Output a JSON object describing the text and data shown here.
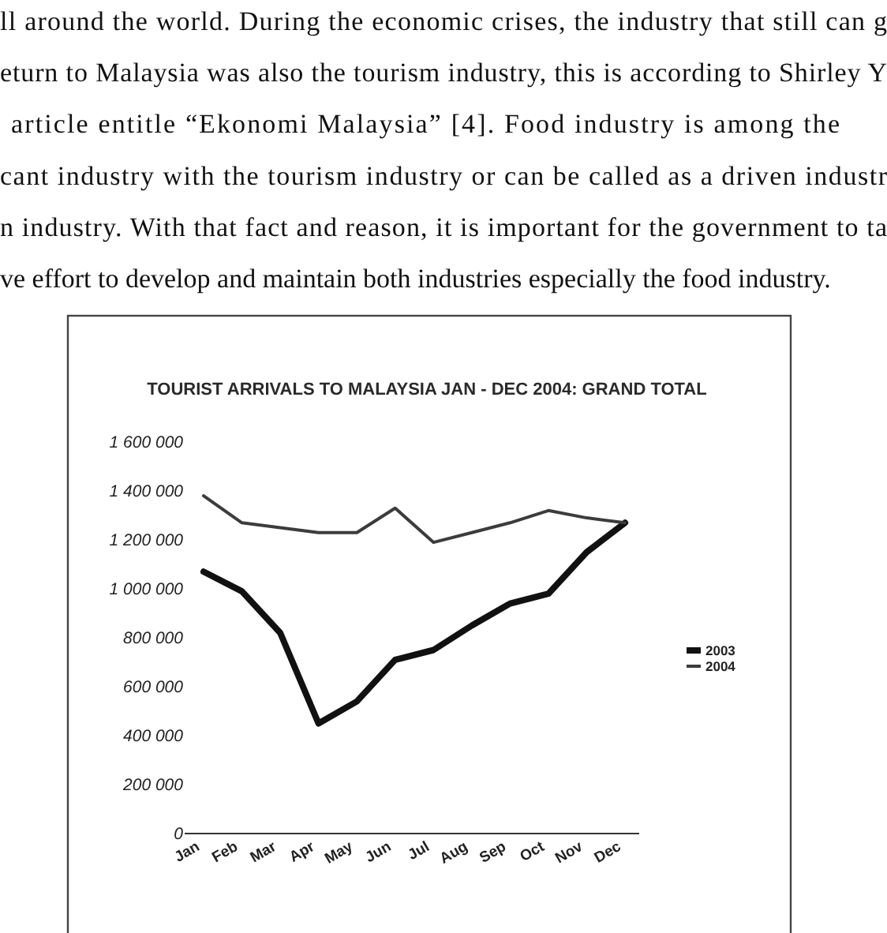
{
  "chart_data": {
    "type": "line",
    "title": "TOURIST ARRIVALS TO MALAYSIA JAN - DEC 2004: GRAND TOTAL",
    "categories": [
      "Jan",
      "Feb",
      "Mar",
      "Apr",
      "May",
      "Jun",
      "Jul",
      "Aug",
      "Sep",
      "Oct",
      "Nov",
      "Dec"
    ],
    "series": [
      {
        "name": "2003",
        "color": "#111111",
        "values": [
          1070000,
          990000,
          820000,
          450000,
          540000,
          710000,
          750000,
          850000,
          940000,
          980000,
          1150000,
          1270000
        ]
      },
      {
        "name": "2004",
        "color": "#3c3c3c",
        "values": [
          1380000,
          1270000,
          1250000,
          1230000,
          1230000,
          1330000,
          1190000,
          1230000,
          1270000,
          1320000,
          1290000,
          1270000
        ]
      }
    ],
    "ylim": [
      0,
      1600000
    ],
    "yticks": [
      0,
      {
        "value": 200000,
        "label": "200 000"
      },
      {
        "value": 400000,
        "label": "400 000"
      },
      {
        "value": 600000,
        "label": "600 000"
      },
      {
        "value": 800000,
        "label": "800 000"
      },
      {
        "value": 1000000,
        "label": "1 000 000"
      },
      {
        "value": 1200000,
        "label": "1 200 000"
      },
      {
        "value": 1400000,
        "label": "1 400 000"
      },
      {
        "value": 1600000,
        "label": "1 600 000"
      }
    ],
    "legend": "right",
    "annotations": [
      "ll around the world. During the economic crises, the industry that still can g",
      "eturn to Malaysia was also the tourism industry, this is according to Shirley Y",
      "article entitle “Ekonomi Malaysia” [4]. Food industry is among the",
      "cant industry with the tourism industry or can be called as a driven industr",
      "n industry. With that fact and reason, it is important for the government to ta",
      "ve effort to develop and maintain both industries especially the food industry."
    ]
  }
}
